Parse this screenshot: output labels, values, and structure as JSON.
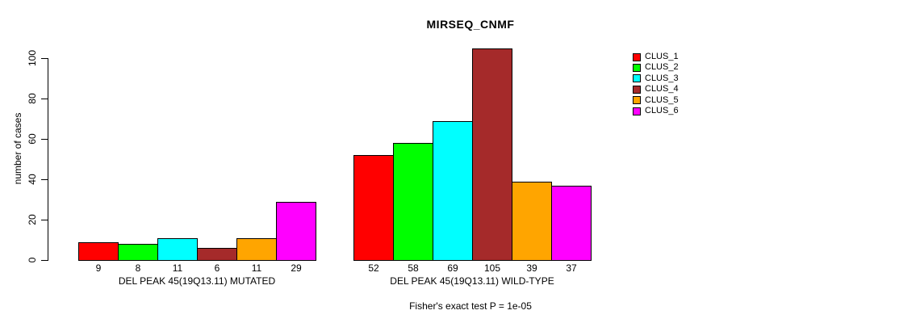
{
  "chart_data": {
    "type": "bar",
    "title": "MIRSEQ_CNMF",
    "ylabel": "number of cases",
    "xlabel": "",
    "ylim": [
      0,
      105
    ],
    "yticks": [
      0,
      20,
      40,
      60,
      80,
      100
    ],
    "grid": false,
    "legend_position": "right",
    "legend": [
      {
        "label": "CLUS_1",
        "color": "#FF0000"
      },
      {
        "label": "CLUS_2",
        "color": "#00FF00"
      },
      {
        "label": "CLUS_3",
        "color": "#00FFFF"
      },
      {
        "label": "CLUS_4",
        "color": "#A52A2A"
      },
      {
        "label": "CLUS_5",
        "color": "#FFA500"
      },
      {
        "label": "CLUS_6",
        "color": "#FF00FF"
      }
    ],
    "series_names": [
      "CLUS_1",
      "CLUS_2",
      "CLUS_3",
      "CLUS_4",
      "CLUS_5",
      "CLUS_6"
    ],
    "groups": [
      {
        "label": "DEL PEAK 45(19Q13.11) MUTATED",
        "values": [
          9,
          8,
          11,
          6,
          11,
          29
        ]
      },
      {
        "label": "DEL PEAK 45(19Q13.11) WILD-TYPE",
        "values": [
          52,
          58,
          69,
          105,
          39,
          37
        ]
      }
    ],
    "annotation": "Fisher's exact test P = 1e-05",
    "bar_border_color": "#000000",
    "background_color": "#FFFFFF"
  }
}
